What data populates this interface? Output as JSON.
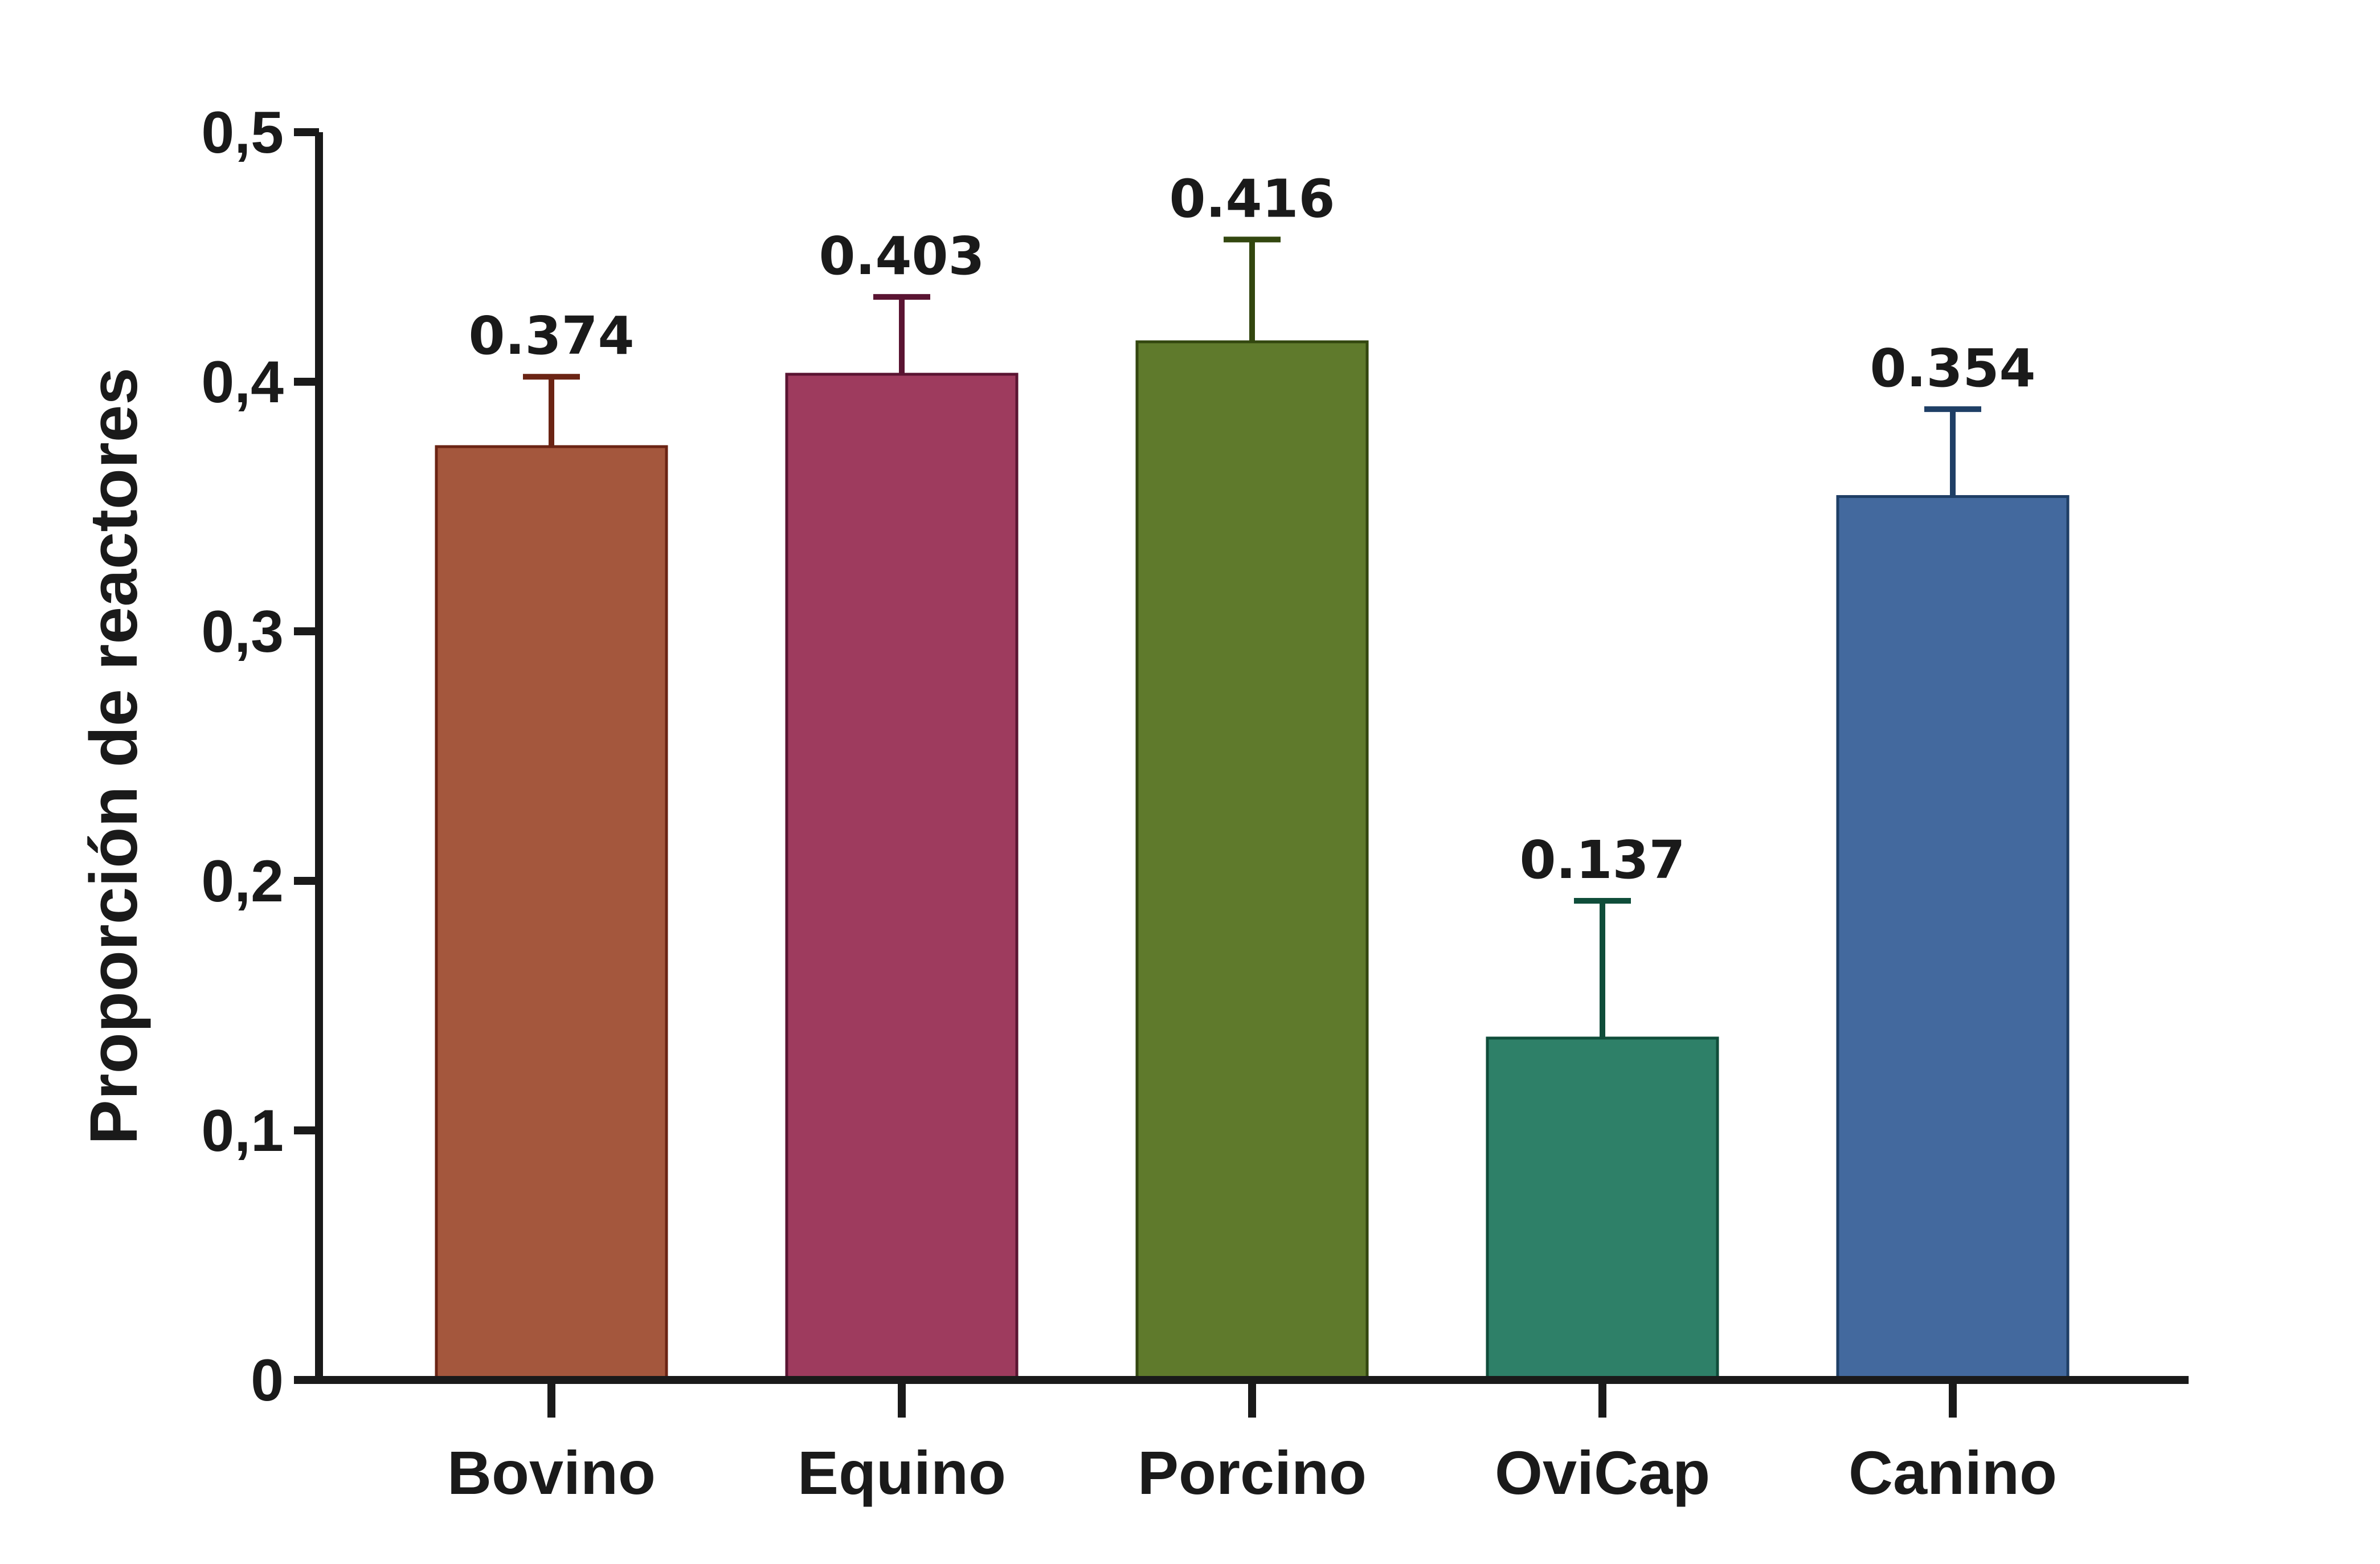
{
  "chart_data": {
    "type": "bar",
    "title": "",
    "xlabel": "",
    "ylabel": "Proporción de reactores",
    "ylim": [
      0,
      0.5
    ],
    "y_ticks": [
      {
        "value": 0,
        "label": "0"
      },
      {
        "value": 0.1,
        "label": "0,1"
      },
      {
        "value": 0.2,
        "label": "0,2"
      },
      {
        "value": 0.3,
        "label": "0,3"
      },
      {
        "value": 0.4,
        "label": "0,4"
      },
      {
        "value": 0.5,
        "label": "0,5"
      }
    ],
    "categories": [
      "Bovino",
      "Equino",
      "Porcino",
      "OviCap",
      "Canino"
    ],
    "values": [
      0.374,
      0.403,
      0.416,
      0.137,
      0.354
    ],
    "value_labels": [
      "0.374",
      "0.403",
      "0.416",
      "0.137",
      "0.354"
    ],
    "error_upper": [
      0.402,
      0.434,
      0.457,
      0.192,
      0.389
    ],
    "bar_colors": [
      "#a4573d",
      "#9e3b5e",
      "#5f7a2c",
      "#2e8068",
      "#43699e"
    ],
    "edge_colors": [
      "#6b2414",
      "#5a1432",
      "#33470f",
      "#0f4d3a",
      "#1f3f66"
    ],
    "grid": false,
    "legend": "none"
  }
}
